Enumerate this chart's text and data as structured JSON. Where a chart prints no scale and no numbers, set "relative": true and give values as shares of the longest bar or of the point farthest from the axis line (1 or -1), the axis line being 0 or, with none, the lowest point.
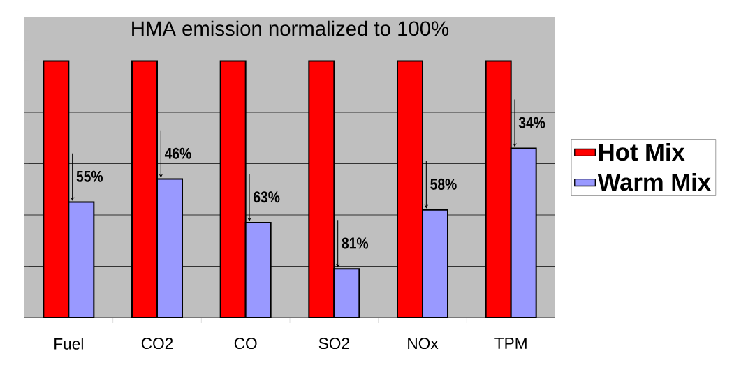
{
  "chart_data": {
    "type": "bar",
    "title": "HMA emission normalized to 100%",
    "categories": [
      "Fuel",
      "CO2",
      "CO",
      "SO2",
      "NOx",
      "TPM"
    ],
    "relative": true,
    "grid": "y",
    "legend": "right",
    "series": [
      {
        "name": "Hot Mix",
        "color": "#ff0000",
        "values": [
          1,
          1,
          1,
          1,
          1,
          1
        ]
      },
      {
        "name": "Warm Mix",
        "color": "#9999ff",
        "values": [
          0.45,
          0.54,
          0.37,
          0.19,
          0.42,
          0.66
        ]
      }
    ],
    "annotations": [
      "55%",
      "46%",
      "63%",
      "81%",
      "58%",
      "34%"
    ]
  }
}
